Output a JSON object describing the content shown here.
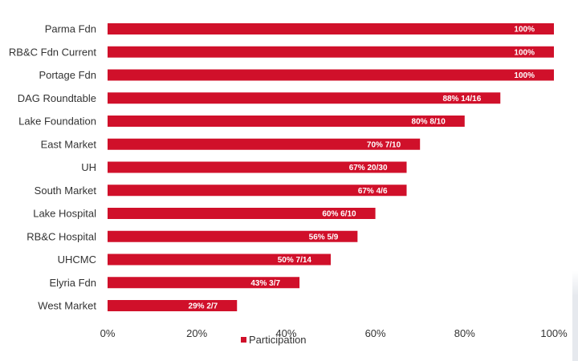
{
  "chart_data": {
    "type": "bar",
    "orientation": "horizontal",
    "categories": [
      "Parma Fdn",
      "RB&C Fdn Current",
      "Portage Fdn",
      "DAG Roundtable",
      "Lake Foundation",
      "East Market",
      "UH",
      "South Market",
      "Lake Hospital",
      "RB&C Hospital",
      "UHCMC",
      "Elyria Fdn",
      "West Market"
    ],
    "series": [
      {
        "name": "Participation",
        "values": [
          100,
          100,
          100,
          88,
          80,
          70,
          67,
          67,
          60,
          56,
          50,
          43,
          29
        ],
        "data_labels": [
          "100%",
          "100%",
          "100%",
          "88% 14/16",
          "80%  8/10",
          "70% 7/10",
          "67% 20/30",
          "67% 4/6",
          "60% 6/10",
          "56% 5/9",
          "50% 7/14",
          "43% 3/7",
          "29% 2/7"
        ]
      }
    ],
    "xlim": [
      0,
      100
    ],
    "x_ticks": [
      "0%",
      "20%",
      "40%",
      "60%",
      "80%",
      "100%"
    ],
    "grid": false,
    "legend_position": "bottom",
    "color": "#d0102a"
  }
}
